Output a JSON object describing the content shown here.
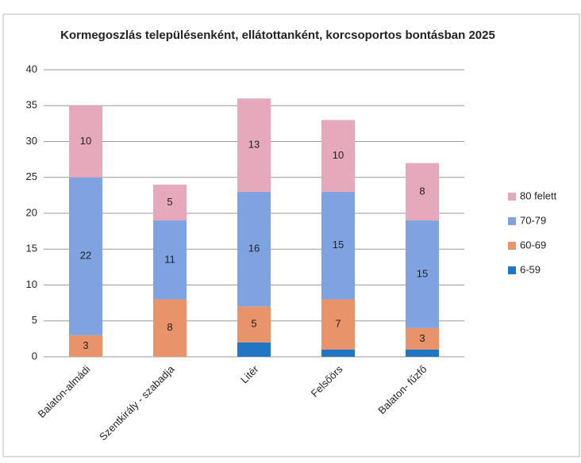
{
  "chart_data": {
    "type": "stacked-bar",
    "title": "Kormegoszlás településenként, ellátottanként, korcsoportos bontásban 2025",
    "categories": [
      "Balaton-almádi",
      "Szentkirály - szabadja",
      "Litér",
      "Felsőörs",
      "Balaton- fűzfő"
    ],
    "series": [
      {
        "name": "6-59",
        "color": "#1f77c4",
        "show_labels": false,
        "values": [
          0,
          0,
          2,
          1,
          1
        ]
      },
      {
        "name": "60-69",
        "color": "#e8936a",
        "show_labels": true,
        "values": [
          3,
          8,
          5,
          7,
          3
        ]
      },
      {
        "name": "70-79",
        "color": "#7fa3e0",
        "show_labels": true,
        "values": [
          22,
          11,
          16,
          15,
          15
        ]
      },
      {
        "name": "80 felett",
        "color": "#e6a8bb",
        "show_labels": true,
        "values": [
          10,
          5,
          13,
          10,
          8
        ]
      }
    ],
    "ylim": [
      0,
      40
    ],
    "yticks": [
      0,
      5,
      10,
      15,
      20,
      25,
      30,
      35,
      40
    ],
    "grid": true,
    "legend": "right"
  }
}
